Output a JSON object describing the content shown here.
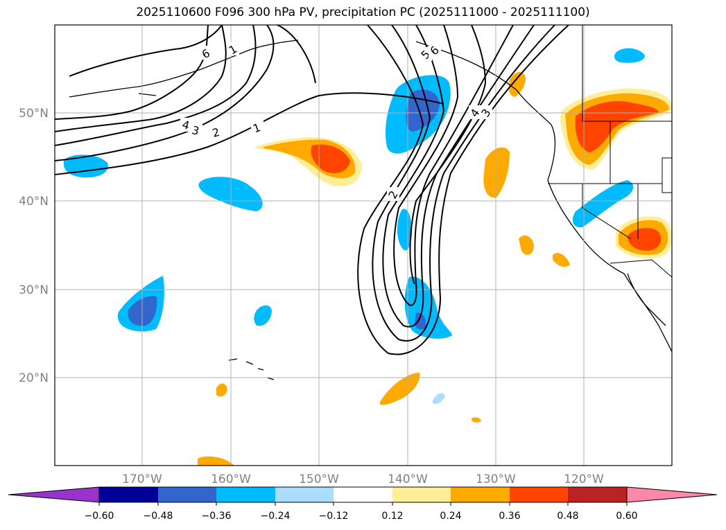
{
  "title": "2025110600 F096 300 hPa PV, precipitation PC (2025111000 - 2025111100)",
  "lat_labels": [
    "50°N",
    "40°N",
    "30°N",
    "20°N"
  ],
  "lon_labels": [
    "170°W",
    "160°W",
    "150°W",
    "140°W",
    "130°W",
    "120°W"
  ],
  "pv_contour_labels": [
    "6",
    "1",
    "4",
    "3",
    "2",
    "1",
    "5",
    "6",
    "4",
    "3",
    "2"
  ],
  "colorbar": {
    "colors": [
      "#9933cc",
      "#000099",
      "#3366cc",
      "#00bbff",
      "#aaddff",
      "#ffffff",
      "#ffee99",
      "#ffaa00",
      "#ff4400",
      "#bb2222",
      "#ff88aa"
    ],
    "tick_labels": [
      "−0.60",
      "−0.48",
      "−0.36",
      "−0.24",
      "−0.12",
      "0.12",
      "0.24",
      "0.36",
      "0.48",
      "0.60"
    ]
  }
}
